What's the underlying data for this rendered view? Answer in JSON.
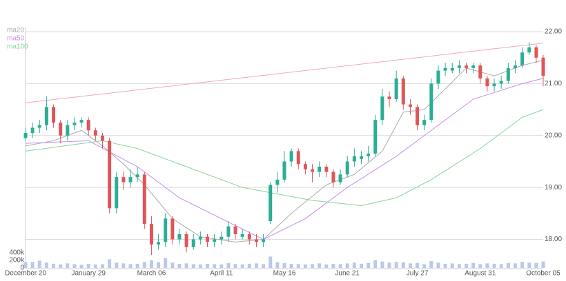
{
  "chart_data": {
    "type": "candlestick",
    "categories": [
      "December 20",
      null,
      null,
      null,
      null,
      null,
      null,
      null,
      null,
      "January 29",
      null,
      null,
      null,
      null,
      null,
      null,
      null,
      null,
      "March 06",
      null,
      null,
      null,
      null,
      null,
      null,
      null,
      null,
      null,
      "April 11",
      null,
      null,
      null,
      null,
      null,
      null,
      null,
      null,
      "May 16",
      null,
      null,
      null,
      null,
      null,
      null,
      null,
      null,
      "June 21",
      null,
      null,
      null,
      null,
      null,
      null,
      null,
      null,
      null,
      "July 27",
      null,
      null,
      null,
      null,
      null,
      null,
      null,
      null,
      "August 31",
      null,
      null,
      null,
      null,
      null,
      null,
      null,
      null,
      "October 05"
    ],
    "open": [
      19.95,
      20.05,
      20.15,
      20.2,
      20.55,
      20.25,
      20.0,
      20.2,
      20.25,
      20.3,
      20.1,
      20.0,
      19.9,
      18.6,
      19.2,
      19.1,
      19.2,
      19.25,
      18.3,
      17.9,
      17.95,
      18.4,
      18.0,
      18.1,
      17.85,
      18.0,
      18.05,
      17.95,
      18.0,
      18.05,
      18.25,
      18.05,
      18.1,
      18.0,
      17.95,
      18.35,
      19.05,
      19.15,
      19.5,
      19.7,
      19.45,
      19.35,
      19.3,
      19.4,
      19.3,
      19.1,
      19.25,
      19.5,
      19.55,
      19.6,
      19.65,
      20.3,
      20.75,
      20.7,
      21.1,
      20.6,
      20.55,
      20.2,
      20.3,
      21.0,
      21.25,
      21.25,
      21.3,
      21.35,
      21.3,
      21.35,
      21.1,
      20.95,
      21.0,
      21.05,
      21.3,
      21.35,
      21.6,
      21.7,
      21.5
    ],
    "high": [
      20.15,
      20.25,
      20.3,
      20.75,
      20.6,
      20.3,
      20.3,
      20.35,
      20.35,
      20.35,
      20.15,
      20.05,
      19.95,
      19.3,
      19.3,
      19.35,
      19.4,
      19.3,
      18.45,
      18.1,
      18.5,
      18.45,
      18.2,
      18.15,
      18.1,
      18.15,
      18.1,
      18.1,
      18.15,
      18.35,
      18.3,
      18.2,
      18.15,
      18.1,
      18.1,
      19.1,
      19.3,
      19.7,
      19.75,
      19.75,
      19.5,
      19.45,
      19.5,
      19.45,
      19.35,
      19.35,
      19.6,
      19.75,
      19.7,
      19.8,
      20.4,
      20.9,
      20.85,
      21.25,
      21.15,
      20.7,
      20.6,
      20.4,
      21.1,
      21.35,
      21.4,
      21.4,
      21.45,
      21.4,
      21.4,
      21.4,
      21.15,
      21.1,
      21.15,
      21.4,
      21.45,
      21.7,
      21.8,
      21.75,
      21.55
    ],
    "low": [
      19.9,
      19.95,
      20.05,
      20.1,
      20.15,
      19.85,
      19.9,
      20.1,
      20.15,
      20.0,
      19.9,
      19.75,
      18.5,
      18.5,
      18.95,
      19.0,
      19.1,
      18.2,
      17.7,
      17.8,
      17.85,
      17.9,
      17.9,
      17.75,
      17.8,
      17.9,
      17.85,
      17.85,
      17.9,
      17.95,
      18.0,
      18.0,
      17.9,
      17.85,
      17.85,
      18.3,
      18.9,
      19.1,
      19.4,
      19.35,
      19.25,
      19.1,
      19.2,
      19.2,
      19.0,
      19.05,
      19.2,
      19.4,
      19.45,
      19.5,
      19.6,
      20.2,
      20.55,
      20.65,
      20.5,
      20.4,
      20.1,
      20.1,
      20.25,
      20.9,
      21.15,
      21.2,
      21.2,
      21.2,
      21.2,
      21.0,
      20.85,
      20.85,
      20.9,
      21.0,
      21.2,
      21.3,
      21.55,
      21.4,
      20.95
    ],
    "close": [
      20.05,
      20.15,
      20.2,
      20.55,
      20.25,
      20.0,
      20.2,
      20.25,
      20.3,
      20.1,
      20.0,
      19.9,
      18.6,
      19.2,
      19.1,
      19.2,
      19.25,
      18.3,
      17.9,
      17.95,
      18.4,
      18.0,
      18.1,
      17.85,
      18.0,
      18.05,
      17.95,
      18.0,
      18.05,
      18.25,
      18.1,
      18.1,
      18.0,
      17.95,
      18.0,
      19.05,
      19.15,
      19.5,
      19.7,
      19.45,
      19.35,
      19.3,
      19.4,
      19.3,
      19.1,
      19.25,
      19.5,
      19.6,
      19.6,
      19.65,
      20.3,
      20.75,
      20.7,
      21.1,
      20.6,
      20.55,
      20.2,
      20.3,
      21.0,
      21.25,
      21.3,
      21.3,
      21.35,
      21.3,
      21.35,
      21.1,
      20.95,
      21.0,
      21.05,
      21.3,
      21.35,
      21.6,
      21.7,
      21.5,
      21.15
    ],
    "up_color": "#2bae94",
    "down_color": "#e0555a",
    "ylim": [
      17.45,
      22.08
    ],
    "yticks": [
      {
        "value": 18,
        "label": "18.00"
      },
      {
        "value": 19,
        "label": "19.00"
      },
      {
        "value": 20,
        "label": "20.00"
      },
      {
        "value": 21,
        "label": "21.00"
      },
      {
        "value": 22,
        "label": "22.00"
      }
    ],
    "grid": true,
    "lines": [
      {
        "name": "ma20",
        "color": "#aaaaaa",
        "x": [
          0,
          4,
          8,
          11,
          14,
          17,
          21,
          25,
          30,
          34,
          38,
          43,
          47,
          51,
          54,
          57,
          60,
          63,
          67,
          71,
          74
        ],
        "values": [
          19.8,
          19.9,
          20.1,
          19.8,
          19.45,
          19.05,
          18.4,
          18.05,
          17.95,
          18.0,
          18.5,
          19.05,
          19.25,
          19.7,
          20.45,
          20.5,
          20.9,
          21.3,
          21.15,
          21.35,
          21.45
        ]
      },
      {
        "name": "ma50",
        "color": "#c58cf0",
        "x": [
          0,
          9,
          16,
          22,
          28,
          34,
          40,
          46,
          53,
          57,
          64,
          71,
          74
        ],
        "values": [
          19.85,
          19.9,
          19.4,
          18.8,
          18.4,
          18.0,
          18.4,
          19.0,
          19.6,
          20.0,
          20.7,
          21.0,
          21.1
        ]
      },
      {
        "name": "ma100",
        "color": "#86d49a",
        "x": [
          0,
          11,
          16,
          22,
          31,
          41,
          48,
          53,
          58,
          65,
          71,
          74
        ],
        "values": [
          19.7,
          19.9,
          19.75,
          19.45,
          19.0,
          18.75,
          18.65,
          18.8,
          19.15,
          19.75,
          20.35,
          20.5
        ]
      }
    ],
    "trendline": {
      "color": "#f3a6b8",
      "x": [
        0,
        74
      ],
      "values": [
        20.63,
        21.78
      ]
    },
    "volume": {
      "color": "#b9c9ea",
      "ylim": [
        0,
        400000
      ],
      "yticks": [
        0,
        {
          "value": 200000,
          "label": "200k"
        },
        {
          "value": 400000,
          "label": "400k"
        }
      ],
      "values": [
        150000,
        160000,
        190000,
        140000,
        110000,
        90000,
        120000,
        100000,
        80000,
        110000,
        90000,
        100000,
        230000,
        140000,
        120000,
        100000,
        110000,
        160000,
        200000,
        150000,
        260000,
        140000,
        110000,
        120000,
        100000,
        90000,
        110000,
        100000,
        90000,
        130000,
        100000,
        90000,
        110000,
        120000,
        100000,
        300000,
        150000,
        130000,
        110000,
        100000,
        90000,
        100000,
        120000,
        90000,
        110000,
        100000,
        120000,
        140000,
        110000,
        130000,
        200000,
        170000,
        140000,
        160000,
        150000,
        120000,
        130000,
        100000,
        180000,
        140000,
        110000,
        120000,
        100000,
        110000,
        130000,
        100000,
        120000,
        110000,
        100000,
        130000,
        120000,
        160000,
        140000,
        130000,
        170000
      ]
    }
  }
}
